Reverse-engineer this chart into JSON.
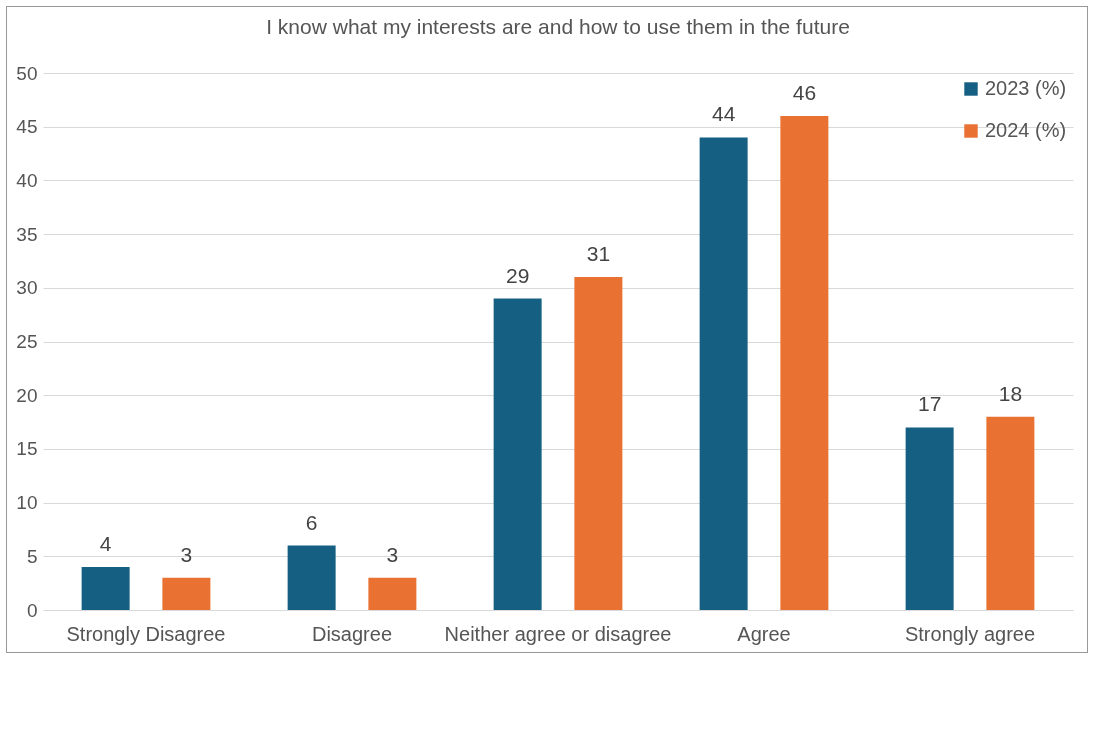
{
  "chart_data": {
    "type": "bar",
    "title": "I know what my interests are and how to use them in the future",
    "categories": [
      "Strongly Disagree",
      "Disagree",
      "Neither agree or disagree",
      "Agree",
      "Strongly agree"
    ],
    "series": [
      {
        "name": "2023 (%)",
        "color": "#156082",
        "values": [
          4,
          6,
          29,
          44,
          17
        ]
      },
      {
        "name": "2024 (%)",
        "color": "#e97132",
        "values": [
          3,
          3,
          31,
          46,
          18
        ]
      }
    ],
    "ylim": [
      0,
      50
    ],
    "yticks": [
      0,
      5,
      10,
      15,
      20,
      25,
      30,
      35,
      40,
      45,
      50
    ],
    "grid": "y",
    "legend": "top right",
    "data_labels": true
  }
}
